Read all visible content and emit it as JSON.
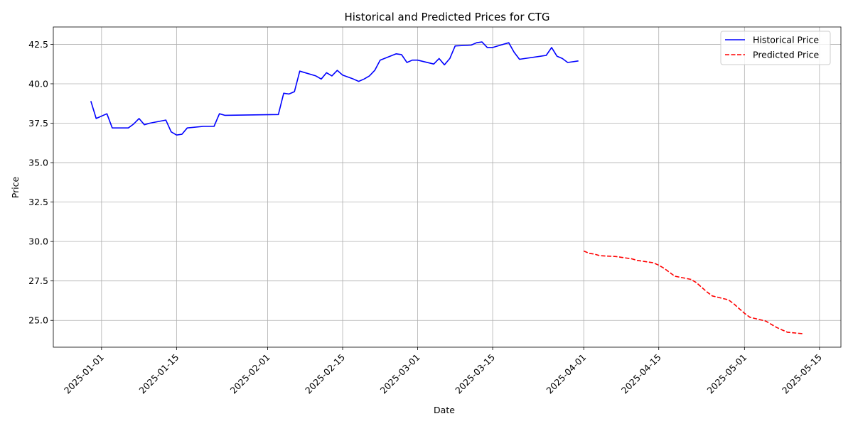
{
  "chart_data": {
    "type": "line",
    "title": "Historical and Predicted Prices for CTG",
    "xlabel": "Date",
    "ylabel": "Price",
    "x_range": [
      "2024-12-23",
      "2025-05-19"
    ],
    "ylim": [
      23.3,
      43.6
    ],
    "x_ticks": [
      "2025-01-01",
      "2025-01-15",
      "2025-02-01",
      "2025-02-15",
      "2025-03-01",
      "2025-03-15",
      "2025-04-01",
      "2025-04-15",
      "2025-05-01",
      "2025-05-15"
    ],
    "y_ticks": [
      25.0,
      27.5,
      30.0,
      32.5,
      35.0,
      37.5,
      40.0,
      42.5
    ],
    "grid": true,
    "legend_position": "top-right",
    "series": [
      {
        "name": "Historical Price",
        "color": "#0000ff",
        "style": "solid",
        "points": [
          [
            "2024-12-30",
            38.9
          ],
          [
            "2024-12-31",
            37.8
          ],
          [
            "2025-01-02",
            38.1
          ],
          [
            "2025-01-03",
            37.2
          ],
          [
            "2025-01-06",
            37.2
          ],
          [
            "2025-01-07",
            37.45
          ],
          [
            "2025-01-08",
            37.8
          ],
          [
            "2025-01-09",
            37.4
          ],
          [
            "2025-01-10",
            37.5
          ],
          [
            "2025-01-13",
            37.7
          ],
          [
            "2025-01-14",
            36.95
          ],
          [
            "2025-01-15",
            36.75
          ],
          [
            "2025-01-16",
            36.8
          ],
          [
            "2025-01-17",
            37.2
          ],
          [
            "2025-01-20",
            37.3
          ],
          [
            "2025-01-21",
            37.3
          ],
          [
            "2025-01-22",
            37.3
          ],
          [
            "2025-01-23",
            38.1
          ],
          [
            "2025-01-24",
            38.0
          ],
          [
            "2025-02-03",
            38.05
          ],
          [
            "2025-02-04",
            39.4
          ],
          [
            "2025-02-05",
            39.35
          ],
          [
            "2025-02-06",
            39.5
          ],
          [
            "2025-02-07",
            40.8
          ],
          [
            "2025-02-10",
            40.5
          ],
          [
            "2025-02-11",
            40.3
          ],
          [
            "2025-02-12",
            40.7
          ],
          [
            "2025-02-13",
            40.5
          ],
          [
            "2025-02-14",
            40.85
          ],
          [
            "2025-02-15",
            40.55
          ],
          [
            "2025-02-17",
            40.3
          ],
          [
            "2025-02-18",
            40.15
          ],
          [
            "2025-02-19",
            40.3
          ],
          [
            "2025-02-20",
            40.5
          ],
          [
            "2025-02-21",
            40.85
          ],
          [
            "2025-02-22",
            41.5
          ],
          [
            "2025-02-25",
            41.9
          ],
          [
            "2025-02-26",
            41.85
          ],
          [
            "2025-02-27",
            41.35
          ],
          [
            "2025-02-28",
            41.5
          ],
          [
            "2025-03-01",
            41.5
          ],
          [
            "2025-03-04",
            41.25
          ],
          [
            "2025-03-05",
            41.6
          ],
          [
            "2025-03-06",
            41.2
          ],
          [
            "2025-03-07",
            41.6
          ],
          [
            "2025-03-08",
            42.4
          ],
          [
            "2025-03-11",
            42.45
          ],
          [
            "2025-03-12",
            42.6
          ],
          [
            "2025-03-13",
            42.65
          ],
          [
            "2025-03-14",
            42.3
          ],
          [
            "2025-03-15",
            42.3
          ],
          [
            "2025-03-17",
            42.5
          ],
          [
            "2025-03-18",
            42.6
          ],
          [
            "2025-03-19",
            42.0
          ],
          [
            "2025-03-20",
            41.55
          ],
          [
            "2025-03-25",
            41.8
          ],
          [
            "2025-03-26",
            42.3
          ],
          [
            "2025-03-27",
            41.75
          ],
          [
            "2025-03-28",
            41.6
          ],
          [
            "2025-03-29",
            41.35
          ],
          [
            "2025-03-31",
            41.45
          ]
        ]
      },
      {
        "name": "Predicted Price",
        "color": "#ff0000",
        "style": "dashed",
        "points": [
          [
            "2025-04-01",
            29.4
          ],
          [
            "2025-04-02",
            29.25
          ],
          [
            "2025-04-03",
            29.2
          ],
          [
            "2025-04-04",
            29.1
          ],
          [
            "2025-04-07",
            29.05
          ],
          [
            "2025-04-08",
            29.0
          ],
          [
            "2025-04-09",
            28.95
          ],
          [
            "2025-04-10",
            28.9
          ],
          [
            "2025-04-11",
            28.8
          ],
          [
            "2025-04-12",
            28.75
          ],
          [
            "2025-04-14",
            28.65
          ],
          [
            "2025-04-15",
            28.5
          ],
          [
            "2025-04-16",
            28.3
          ],
          [
            "2025-04-17",
            28.05
          ],
          [
            "2025-04-18",
            27.8
          ],
          [
            "2025-04-21",
            27.6
          ],
          [
            "2025-04-22",
            27.4
          ],
          [
            "2025-04-23",
            27.1
          ],
          [
            "2025-04-24",
            26.8
          ],
          [
            "2025-04-25",
            26.55
          ],
          [
            "2025-04-28",
            26.3
          ],
          [
            "2025-04-29",
            26.05
          ],
          [
            "2025-04-30",
            25.75
          ],
          [
            "2025-05-01",
            25.45
          ],
          [
            "2025-05-02",
            25.2
          ],
          [
            "2025-05-05",
            24.95
          ],
          [
            "2025-05-06",
            24.75
          ],
          [
            "2025-05-07",
            24.55
          ],
          [
            "2025-05-08",
            24.4
          ],
          [
            "2025-05-09",
            24.25
          ],
          [
            "2025-05-12",
            24.15
          ]
        ]
      }
    ]
  }
}
